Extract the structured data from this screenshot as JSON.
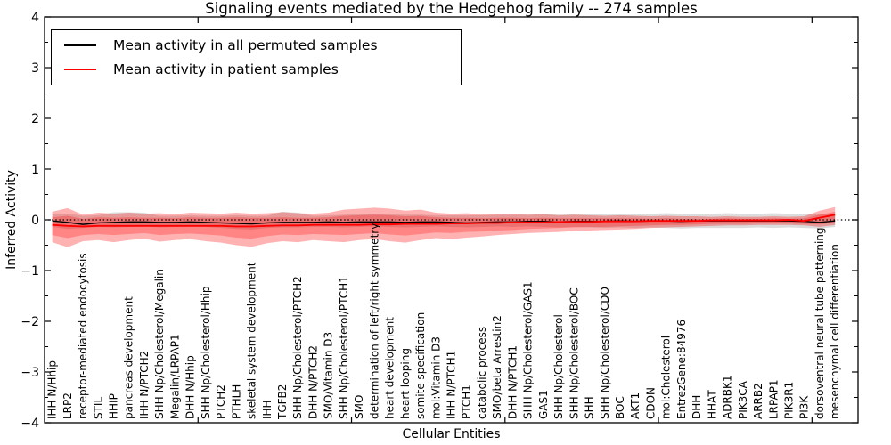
{
  "chart_data": {
    "type": "line",
    "title": "Signaling events mediated by the Hedgehog family -- 274 samples",
    "xlabel": "Cellular Entities",
    "ylabel": "Inferred Activity",
    "ylim": [
      -4,
      4
    ],
    "xlim": [
      0,
      53
    ],
    "grid": false,
    "legend_position": "upper left",
    "zero_line": true,
    "yticks": [
      -4,
      -3,
      -2,
      -1,
      0,
      1,
      2,
      3,
      4
    ],
    "ytick_labels": [
      "−4",
      "−3",
      "−2",
      "−1",
      "0",
      "1",
      "2",
      "3",
      "4"
    ],
    "ytick_minor_step": 0.5,
    "xticks": [
      10,
      20,
      30,
      40,
      50
    ],
    "categories": [
      "IHH N/Hhip",
      "LRP2",
      "receptor-mediated endocytosis",
      "STIL",
      "HHIP",
      "pancreas development",
      "IHH N/PTCH2",
      "SHH Np/Cholesterol/Megalin",
      "Megalin/LRPAP1",
      "DHH N/Hhip",
      "SHH Np/Cholesterol/Hhip",
      "PTCH2",
      "PTHLH",
      "skeletal system development",
      "IHH",
      "TGFB2",
      "SHH Np/Cholesterol/PTCH2",
      "DHH N/PTCH2",
      "SMO/Vitamin D3",
      "SHH Np/Cholesterol/PTCH1",
      "SMO",
      "determination of left/right symmetry",
      "heart development",
      "heart looping",
      "somite specification",
      "mol:Vitamin D3",
      "IHH N/PTCH1",
      "PTCH1",
      "catabolic process",
      "SMO/beta Arrestin2",
      "DHH N/PTCH1",
      "SHH Np/Cholesterol/GAS1",
      "GAS1",
      "SHH Np/Cholesterol",
      "SHH Np/Cholesterol/BOC",
      "SHH",
      "SHH Np/Cholesterol/CDO",
      "BOC",
      "AKT1",
      "CDON",
      "mol:Cholesterol",
      "EntrezGene:84976",
      "DHH",
      "HHAT",
      "ADRBK1",
      "PIK3CA",
      "ARRB2",
      "LRPAP1",
      "PIK3R1",
      "PI3K",
      "dorsoventral neural tube patterning",
      "mesenchymal cell differentiation"
    ],
    "series": [
      {
        "name": "Mean activity in all permuted samples",
        "color": "#000000",
        "values": [
          -0.02,
          -0.05,
          -0.09,
          -0.06,
          -0.05,
          -0.04,
          -0.04,
          -0.05,
          -0.05,
          -0.04,
          -0.05,
          -0.06,
          -0.07,
          -0.08,
          -0.06,
          -0.05,
          -0.05,
          -0.05,
          -0.04,
          -0.05,
          -0.04,
          -0.04,
          -0.04,
          -0.05,
          -0.04,
          -0.04,
          -0.05,
          -0.06,
          -0.05,
          -0.04,
          -0.04,
          -0.03,
          -0.03,
          -0.04,
          -0.03,
          -0.03,
          -0.03,
          -0.02,
          -0.03,
          -0.02,
          -0.02,
          -0.03,
          -0.02,
          -0.02,
          -0.02,
          -0.02,
          -0.02,
          -0.02,
          -0.02,
          -0.03,
          -0.05,
          -0.02
        ]
      },
      {
        "name": "Mean activity in patient samples",
        "color": "#ff0000",
        "values": [
          -0.1,
          -0.12,
          -0.13,
          -0.12,
          -0.12,
          -0.12,
          -0.12,
          -0.12,
          -0.12,
          -0.12,
          -0.12,
          -0.12,
          -0.13,
          -0.13,
          -0.12,
          -0.11,
          -0.11,
          -0.1,
          -0.1,
          -0.1,
          -0.1,
          -0.09,
          -0.09,
          -0.08,
          -0.08,
          -0.08,
          -0.07,
          -0.07,
          -0.06,
          -0.06,
          -0.05,
          -0.05,
          -0.05,
          -0.04,
          -0.04,
          -0.04,
          -0.03,
          -0.03,
          -0.03,
          -0.02,
          -0.02,
          -0.02,
          -0.02,
          -0.01,
          -0.01,
          -0.01,
          -0.01,
          -0.01,
          0.0,
          -0.02,
          0.04,
          0.1
        ]
      }
    ],
    "bands": [
      {
        "name": "permuted-samples-spread",
        "color": "#bfbfbf",
        "opacity": 0.55,
        "upper": [
          0.1,
          0.12,
          0.08,
          0.09,
          0.15,
          0.15,
          0.14,
          0.08,
          0.08,
          0.09,
          0.08,
          0.08,
          0.09,
          0.08,
          0.08,
          0.16,
          0.14,
          0.08,
          0.09,
          0.1,
          0.11,
          0.12,
          0.11,
          0.1,
          0.1,
          0.09,
          0.09,
          0.09,
          0.09,
          0.1,
          0.1,
          0.1,
          0.11,
          0.1,
          0.11,
          0.11,
          0.12,
          0.12,
          0.12,
          0.12,
          0.13,
          0.12,
          0.12,
          0.12,
          0.13,
          0.12,
          0.12,
          0.13,
          0.12,
          0.12,
          0.11,
          0.1
        ],
        "lower": [
          -0.14,
          -0.18,
          -0.16,
          -0.14,
          -0.15,
          -0.14,
          -0.13,
          -0.15,
          -0.14,
          -0.13,
          -0.14,
          -0.16,
          -0.18,
          -0.19,
          -0.16,
          -0.15,
          -0.15,
          -0.14,
          -0.14,
          -0.15,
          -0.14,
          -0.13,
          -0.14,
          -0.15,
          -0.14,
          -0.13,
          -0.14,
          -0.15,
          -0.14,
          -0.13,
          -0.14,
          -0.13,
          -0.14,
          -0.15,
          -0.14,
          -0.15,
          -0.16,
          -0.15,
          -0.16,
          -0.15,
          -0.16,
          -0.17,
          -0.16,
          -0.16,
          -0.16,
          -0.16,
          -0.15,
          -0.16,
          -0.15,
          -0.16,
          -0.17,
          -0.14
        ]
      },
      {
        "name": "patient-samples-spread-outer",
        "color": "#ff0000",
        "opacity": 0.3,
        "upper": [
          0.16,
          0.23,
          0.1,
          0.14,
          0.12,
          0.14,
          0.12,
          0.13,
          0.11,
          0.14,
          0.13,
          0.12,
          0.14,
          0.12,
          0.13,
          0.15,
          0.13,
          0.12,
          0.14,
          0.2,
          0.22,
          0.24,
          0.22,
          0.18,
          0.2,
          0.14,
          0.12,
          0.13,
          0.11,
          0.12,
          0.12,
          0.1,
          0.11,
          0.09,
          0.1,
          0.09,
          0.08,
          0.09,
          0.08,
          0.07,
          0.08,
          0.07,
          0.07,
          0.06,
          0.07,
          0.06,
          0.06,
          0.07,
          0.06,
          0.07,
          0.18,
          0.25
        ],
        "lower": [
          -0.44,
          -0.54,
          -0.42,
          -0.4,
          -0.44,
          -0.4,
          -0.37,
          -0.43,
          -0.4,
          -0.38,
          -0.42,
          -0.45,
          -0.5,
          -0.53,
          -0.46,
          -0.42,
          -0.44,
          -0.4,
          -0.42,
          -0.44,
          -0.4,
          -0.38,
          -0.42,
          -0.45,
          -0.4,
          -0.36,
          -0.38,
          -0.35,
          -0.33,
          -0.3,
          -0.28,
          -0.26,
          -0.25,
          -0.24,
          -0.22,
          -0.21,
          -0.2,
          -0.19,
          -0.18,
          -0.16,
          -0.15,
          -0.14,
          -0.13,
          -0.12,
          -0.11,
          -0.11,
          -0.1,
          -0.1,
          -0.1,
          -0.11,
          -0.14,
          -0.1
        ]
      },
      {
        "name": "patient-samples-spread-inner",
        "color": "#ff0000",
        "opacity": 0.25,
        "upper": [
          0.05,
          0.08,
          0.02,
          0.05,
          0.04,
          0.05,
          0.04,
          0.04,
          0.03,
          0.05,
          0.04,
          0.04,
          0.05,
          0.04,
          0.04,
          0.05,
          0.04,
          0.04,
          0.05,
          0.08,
          0.09,
          0.1,
          0.09,
          0.07,
          0.08,
          0.05,
          0.04,
          0.04,
          0.03,
          0.04,
          0.04,
          0.03,
          0.04,
          0.03,
          0.03,
          0.03,
          0.03,
          0.03,
          0.03,
          0.02,
          0.03,
          0.02,
          0.02,
          0.02,
          0.03,
          0.02,
          0.02,
          0.03,
          0.02,
          0.03,
          0.1,
          0.16
        ],
        "lower": [
          -0.3,
          -0.36,
          -0.3,
          -0.28,
          -0.3,
          -0.28,
          -0.26,
          -0.3,
          -0.28,
          -0.27,
          -0.29,
          -0.31,
          -0.35,
          -0.37,
          -0.32,
          -0.29,
          -0.3,
          -0.28,
          -0.29,
          -0.3,
          -0.28,
          -0.26,
          -0.29,
          -0.31,
          -0.28,
          -0.25,
          -0.26,
          -0.24,
          -0.23,
          -0.21,
          -0.2,
          -0.18,
          -0.17,
          -0.16,
          -0.15,
          -0.14,
          -0.14,
          -0.13,
          -0.12,
          -0.11,
          -0.1,
          -0.1,
          -0.09,
          -0.08,
          -0.08,
          -0.08,
          -0.07,
          -0.07,
          -0.07,
          -0.08,
          -0.09,
          -0.05
        ]
      }
    ]
  },
  "legend": {
    "entries": [
      {
        "label": "Mean activity in all permuted samples",
        "color": "#000000"
      },
      {
        "label": "Mean activity in patient samples",
        "color": "#ff0000"
      }
    ]
  }
}
